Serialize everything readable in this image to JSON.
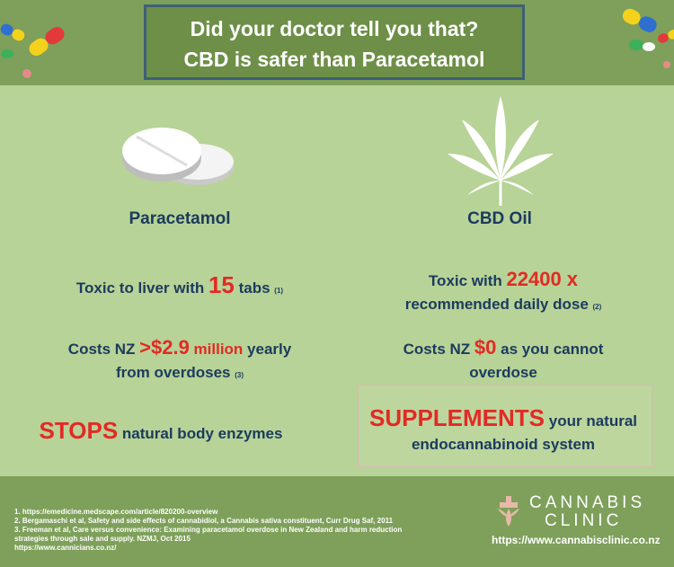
{
  "header": {
    "line1": "Did your doctor tell you that?",
    "line2": "CBD is safer than Paracetamol"
  },
  "left": {
    "title": "Paracetamol",
    "s1_pre": "Toxic to liver with ",
    "s1_num": "15",
    "s1_post": " tabs ",
    "s1_ref": "(1)",
    "s2_pre": "Costs NZ ",
    "s2_num": ">$2.9",
    "s2_mid": " million",
    "s2_post": " yearly",
    "s2_line2": "from overdoses ",
    "s2_ref": "(3)",
    "s3_bold": "STOPS",
    "s3_post": " natural body enzymes"
  },
  "right": {
    "title": "CBD Oil",
    "s1_pre": "Toxic with ",
    "s1_num": "22400 x",
    "s1_line2": "recommended daily dose ",
    "s1_ref": "(2)",
    "s2_pre": "Costs NZ ",
    "s2_num": "$0",
    "s2_post": " as you cannot",
    "s2_line2": "overdose",
    "s3_bold": "SUPPLEMENTS",
    "s3_post": " your natural",
    "s3_line2": "endocannabinoid system"
  },
  "references": [
    "1. https://emedicine.medscape.com/article/820200-overview",
    "2. Bergamaschi et al, Safety and side effects of cannabidiol, a Cannabis sativa constituent, Curr Drug Saf, 2011",
    "3. Freeman et al, Care versus convenience: Examining paracetamol overdose in New Zealand and harm reduction",
    "strategies through sale and supply. NZMJ, Oct 2015",
    "https://www.cannicians.co.nz/"
  ],
  "logo": {
    "line1": "CANNABIS",
    "line2": "CLINIC",
    "url": "https://www.cannabisclinic.co.nz"
  },
  "colors": {
    "background": "#b7d397",
    "band": "#7ea05a",
    "title_box": "#6d8f47",
    "navy": "#1c3a5e",
    "red": "#e32a24"
  }
}
